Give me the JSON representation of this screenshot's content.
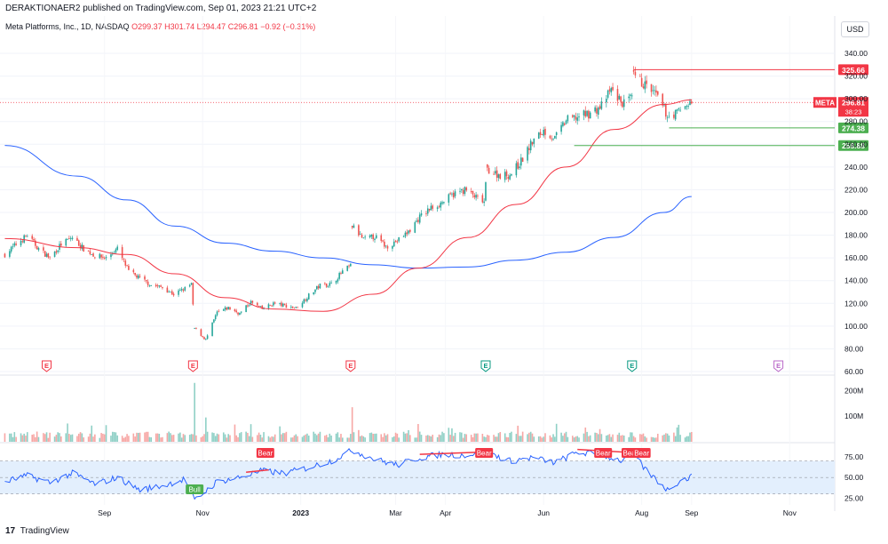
{
  "header": {
    "published": "DERAKTIONAER2 published on TradingView.com, Sep 01, 2023 21:21 UTC+2",
    "symbol_line": "Meta Platforms, Inc., 1D, NASDAQ",
    "o": "O299.37",
    "h": "H301.74",
    "l": "L294.47",
    "c": "C296.81",
    "chg": "−0.92 (−0.31%)",
    "currency": "USD"
  },
  "footer": {
    "brand": "TradingView",
    "logo": "17"
  },
  "colors": {
    "up": "#26a69a",
    "down": "#ef5350",
    "ma_short": "#f23645",
    "ma_long": "#2962ff",
    "rsi": "#2962ff",
    "rsi_band": "#e3effd",
    "bull": "#4caf50",
    "bear": "#f23645"
  },
  "chart_data": [
    {
      "type": "candlestick",
      "title": "Meta Platforms, Inc., 1D, NASDAQ",
      "ylim": [
        60,
        340
      ],
      "y_ticks": [
        60,
        80,
        100,
        120,
        140,
        160,
        180,
        200,
        220,
        240,
        260,
        280,
        300,
        320,
        340
      ],
      "x_ticks": [
        "Sep",
        "Nov",
        "2023",
        "Mar",
        "Apr",
        "Jun",
        "Aug",
        "Sep",
        "Nov"
      ],
      "price_path": [
        [
          "2022-07-01",
          163
        ],
        [
          "2022-07-08",
          172
        ],
        [
          "2022-07-15",
          180
        ],
        [
          "2022-07-22",
          168
        ],
        [
          "2022-07-29",
          160
        ],
        [
          "2022-08-05",
          172
        ],
        [
          "2022-08-12",
          178
        ],
        [
          "2022-08-19",
          168
        ],
        [
          "2022-08-26",
          162
        ],
        [
          "2022-09-02",
          160
        ],
        [
          "2022-09-09",
          168
        ],
        [
          "2022-09-16",
          148
        ],
        [
          "2022-09-23",
          142
        ],
        [
          "2022-09-30",
          136
        ],
        [
          "2022-10-07",
          134
        ],
        [
          "2022-10-14",
          128
        ],
        [
          "2022-10-21",
          133
        ],
        [
          "2022-10-25",
          137
        ],
        [
          "2022-10-27",
          98
        ],
        [
          "2022-11-03",
          88
        ],
        [
          "2022-11-10",
          112
        ],
        [
          "2022-11-17",
          116
        ],
        [
          "2022-11-24",
          111
        ],
        [
          "2022-12-01",
          121
        ],
        [
          "2022-12-08",
          115
        ],
        [
          "2022-12-15",
          120
        ],
        [
          "2022-12-22",
          118
        ],
        [
          "2022-12-29",
          116
        ],
        [
          "2023-01-06",
          127
        ],
        [
          "2023-01-13",
          136
        ],
        [
          "2023-01-20",
          137
        ],
        [
          "2023-01-27",
          148
        ],
        [
          "2023-02-01",
          153
        ],
        [
          "2023-02-02",
          188
        ],
        [
          "2023-02-09",
          176
        ],
        [
          "2023-02-16",
          179
        ],
        [
          "2023-02-23",
          170
        ],
        [
          "2023-03-02",
          175
        ],
        [
          "2023-03-09",
          183
        ],
        [
          "2023-03-16",
          196
        ],
        [
          "2023-03-23",
          204
        ],
        [
          "2023-03-30",
          209
        ],
        [
          "2023-04-06",
          216
        ],
        [
          "2023-04-13",
          220
        ],
        [
          "2023-04-20",
          213
        ],
        [
          "2023-04-25",
          209
        ],
        [
          "2023-04-27",
          238
        ],
        [
          "2023-05-04",
          233
        ],
        [
          "2023-05-11",
          233
        ],
        [
          "2023-05-18",
          245
        ],
        [
          "2023-05-25",
          262
        ],
        [
          "2023-06-01",
          272
        ],
        [
          "2023-06-08",
          265
        ],
        [
          "2023-06-15",
          281
        ],
        [
          "2023-06-22",
          284
        ],
        [
          "2023-06-29",
          287
        ],
        [
          "2023-07-06",
          292
        ],
        [
          "2023-07-13",
          308
        ],
        [
          "2023-07-20",
          296
        ],
        [
          "2023-07-26",
          300
        ],
        [
          "2023-07-27",
          320
        ],
        [
          "2023-08-03",
          312
        ],
        [
          "2023-08-10",
          303
        ],
        [
          "2023-08-17",
          285
        ],
        [
          "2023-08-22",
          287
        ],
        [
          "2023-08-29",
          295
        ],
        [
          "2023-09-01",
          296.81
        ]
      ],
      "sma_short": [
        [
          "2022-07-01",
          177
        ],
        [
          "2022-08-15",
          169
        ],
        [
          "2022-09-15",
          163
        ],
        [
          "2022-10-15",
          146
        ],
        [
          "2022-11-15",
          125
        ],
        [
          "2022-12-15",
          115
        ],
        [
          "2023-01-15",
          113
        ],
        [
          "2023-02-15",
          128
        ],
        [
          "2023-03-15",
          151
        ],
        [
          "2023-04-15",
          178
        ],
        [
          "2023-05-15",
          207
        ],
        [
          "2023-06-15",
          240
        ],
        [
          "2023-07-15",
          273
        ],
        [
          "2023-08-15",
          295
        ],
        [
          "2023-09-01",
          299
        ]
      ],
      "sma_long": [
        [
          "2022-07-01",
          259
        ],
        [
          "2022-08-15",
          232
        ],
        [
          "2022-09-15",
          211
        ],
        [
          "2022-10-15",
          188
        ],
        [
          "2022-11-15",
          173
        ],
        [
          "2022-12-15",
          166
        ],
        [
          "2023-01-15",
          160
        ],
        [
          "2023-02-15",
          154
        ],
        [
          "2023-03-15",
          151
        ],
        [
          "2023-04-15",
          152
        ],
        [
          "2023-05-15",
          158
        ],
        [
          "2023-06-15",
          165
        ],
        [
          "2023-07-15",
          178
        ],
        [
          "2023-08-15",
          200
        ],
        [
          "2023-09-01",
          214
        ]
      ],
      "horizontal_levels": [
        {
          "value": 325.66,
          "label": "325.66",
          "color": "#f23645",
          "from": "2023-07-27"
        },
        {
          "value": 274.38,
          "label": "274.38",
          "color": "#4caf50",
          "from": "2023-08-18"
        },
        {
          "value": 258.88,
          "label": "258.88",
          "color": "#4caf50",
          "from": "2023-06-20"
        }
      ],
      "last_price": {
        "symbol": "META",
        "value": 296.81,
        "label": "296.81",
        "countdown": "38:23"
      },
      "earnings_markers": [
        {
          "date": "2022-07-27",
          "label": "E",
          "color": "#f23645"
        },
        {
          "date": "2022-10-26",
          "label": "E",
          "color": "#f23645"
        },
        {
          "date": "2023-02-01",
          "label": "E",
          "color": "#f23645"
        },
        {
          "date": "2023-04-26",
          "label": "E",
          "color": "#089981"
        },
        {
          "date": "2023-07-26",
          "label": "E",
          "color": "#089981"
        },
        {
          "date": "2023-10-25",
          "label": "E",
          "color": "#ba68c8"
        }
      ]
    },
    {
      "type": "bar",
      "title": "Volume",
      "ylim": [
        0,
        250
      ],
      "y_ticks": [
        {
          "value": 100,
          "label": "100M"
        },
        {
          "value": 200,
          "label": "200M"
        }
      ],
      "spikes": [
        {
          "date": "2022-10-27",
          "value": 230,
          "color": "#ef5350"
        },
        {
          "date": "2022-11-03",
          "value": 95,
          "color": "#ef5350"
        },
        {
          "date": "2023-02-02",
          "value": 135,
          "color": "#26a69a"
        }
      ],
      "baseline_range": [
        15,
        40
      ]
    },
    {
      "type": "line",
      "title": "RSI",
      "ylim": [
        20,
        90
      ],
      "y_ticks": [
        {
          "value": 25,
          "label": "25.00"
        },
        {
          "value": 50,
          "label": "50.00"
        },
        {
          "value": 75,
          "label": "75.00"
        }
      ],
      "band": [
        30,
        70
      ],
      "values": [
        [
          "2022-07-01",
          45
        ],
        [
          "2022-07-15",
          52
        ],
        [
          "2022-07-29",
          44
        ],
        [
          "2022-08-12",
          55
        ],
        [
          "2022-08-26",
          42
        ],
        [
          "2022-09-09",
          50
        ],
        [
          "2022-09-23",
          35
        ],
        [
          "2022-10-07",
          40
        ],
        [
          "2022-10-21",
          48
        ],
        [
          "2022-10-27",
          22
        ],
        [
          "2022-11-10",
          45
        ],
        [
          "2022-11-24",
          50
        ],
        [
          "2022-12-08",
          58
        ],
        [
          "2022-12-22",
          55
        ],
        [
          "2023-01-06",
          62
        ],
        [
          "2023-01-20",
          70
        ],
        [
          "2023-02-02",
          83
        ],
        [
          "2023-02-16",
          72
        ],
        [
          "2023-03-02",
          65
        ],
        [
          "2023-03-16",
          74
        ],
        [
          "2023-03-30",
          78
        ],
        [
          "2023-04-13",
          77
        ],
        [
          "2023-04-27",
          80
        ],
        [
          "2023-05-11",
          70
        ],
        [
          "2023-05-25",
          74
        ],
        [
          "2023-06-08",
          68
        ],
        [
          "2023-06-22",
          80
        ],
        [
          "2023-07-06",
          78
        ],
        [
          "2023-07-20",
          70
        ],
        [
          "2023-07-27",
          78
        ],
        [
          "2023-08-03",
          60
        ],
        [
          "2023-08-17",
          35
        ],
        [
          "2023-08-24",
          45
        ],
        [
          "2023-09-01",
          51
        ]
      ],
      "signals": [
        {
          "label": "Bull",
          "date": "2022-10-27",
          "type": "bull"
        },
        {
          "label": "Bear",
          "date": "2022-12-10",
          "type": "bear"
        },
        {
          "label": "Bear",
          "date": "2023-04-25",
          "type": "bear"
        },
        {
          "label": "Bear",
          "date": "2023-07-08",
          "type": "bear"
        },
        {
          "label": "Bear",
          "date": "2023-07-25",
          "type": "bear"
        },
        {
          "label": "Bear",
          "date": "2023-08-01",
          "type": "bear"
        }
      ],
      "divergence_lines": [
        {
          "from": "2022-11-28",
          "to": "2022-12-12",
          "type": "bear"
        },
        {
          "from": "2023-03-16",
          "to": "2023-04-20",
          "type": "bear"
        },
        {
          "from": "2023-06-22",
          "to": "2023-07-27",
          "type": "bear"
        }
      ]
    }
  ]
}
